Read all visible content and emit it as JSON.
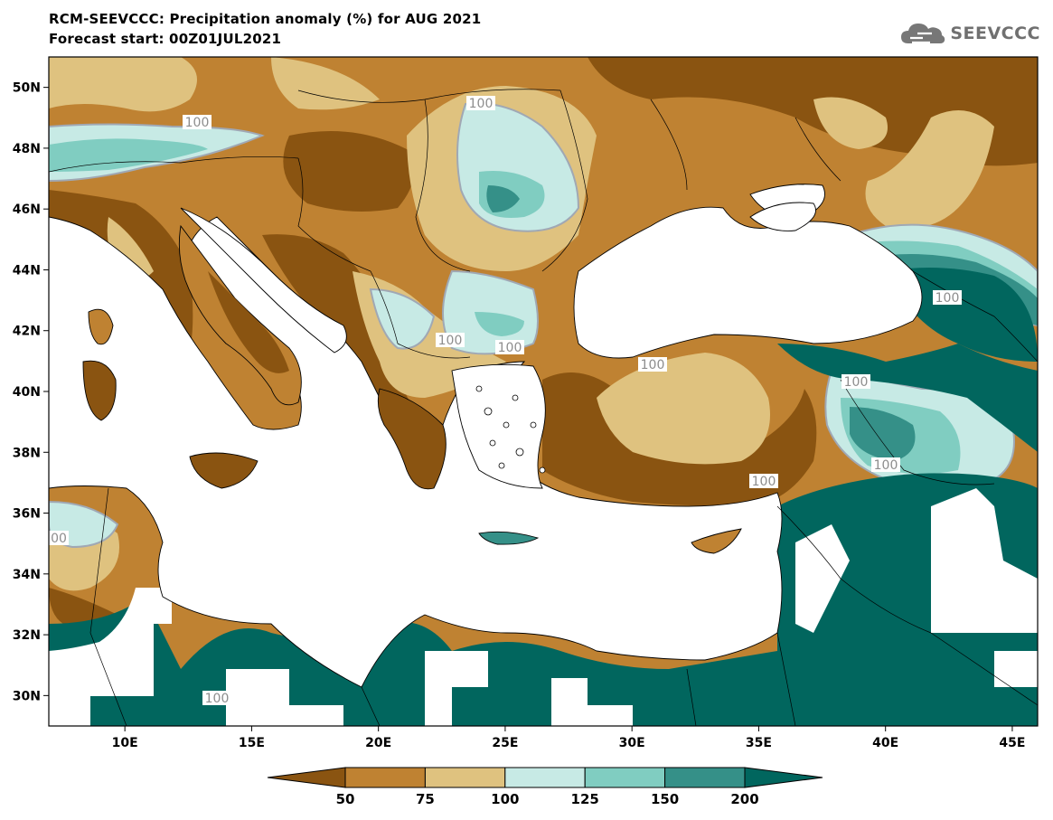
{
  "header": {
    "title": "RCM-SEEVCCC: Precipitation anomaly (%) for AUG 2021",
    "subtitle": "Forecast start: 00Z01JUL2021",
    "logo_text": "SEEVCCC"
  },
  "map": {
    "variable": "Precipitation anomaly (%)",
    "lat_range": [
      29,
      51
    ],
    "lon_range": [
      7,
      46
    ],
    "lat_ticks": [
      "50N",
      "48N",
      "46N",
      "44N",
      "42N",
      "40N",
      "38N",
      "36N",
      "34N",
      "32N",
      "30N"
    ],
    "lon_ticks": [
      "10E",
      "15E",
      "20E",
      "25E",
      "30E",
      "35E",
      "40E",
      "45E"
    ],
    "contour_labels": [
      "100",
      "100",
      "100",
      "100",
      "100",
      "100",
      "100",
      "100",
      "100",
      "100",
      "00"
    ]
  },
  "colorbar": {
    "classes": [
      {
        "range": "<50",
        "color": "#8a5411"
      },
      {
        "range": "50-75",
        "color": "#bf8232"
      },
      {
        "range": "75-100",
        "color": "#dfc27f"
      },
      {
        "range": "100-125",
        "color": "#c7eae5"
      },
      {
        "range": "125-150",
        "color": "#80cdc1"
      },
      {
        "range": "150-200",
        "color": "#359088"
      },
      {
        "range": ">200",
        "color": "#01665e"
      }
    ],
    "labels": [
      "50",
      "75",
      "100",
      "125",
      "150",
      "200"
    ]
  }
}
